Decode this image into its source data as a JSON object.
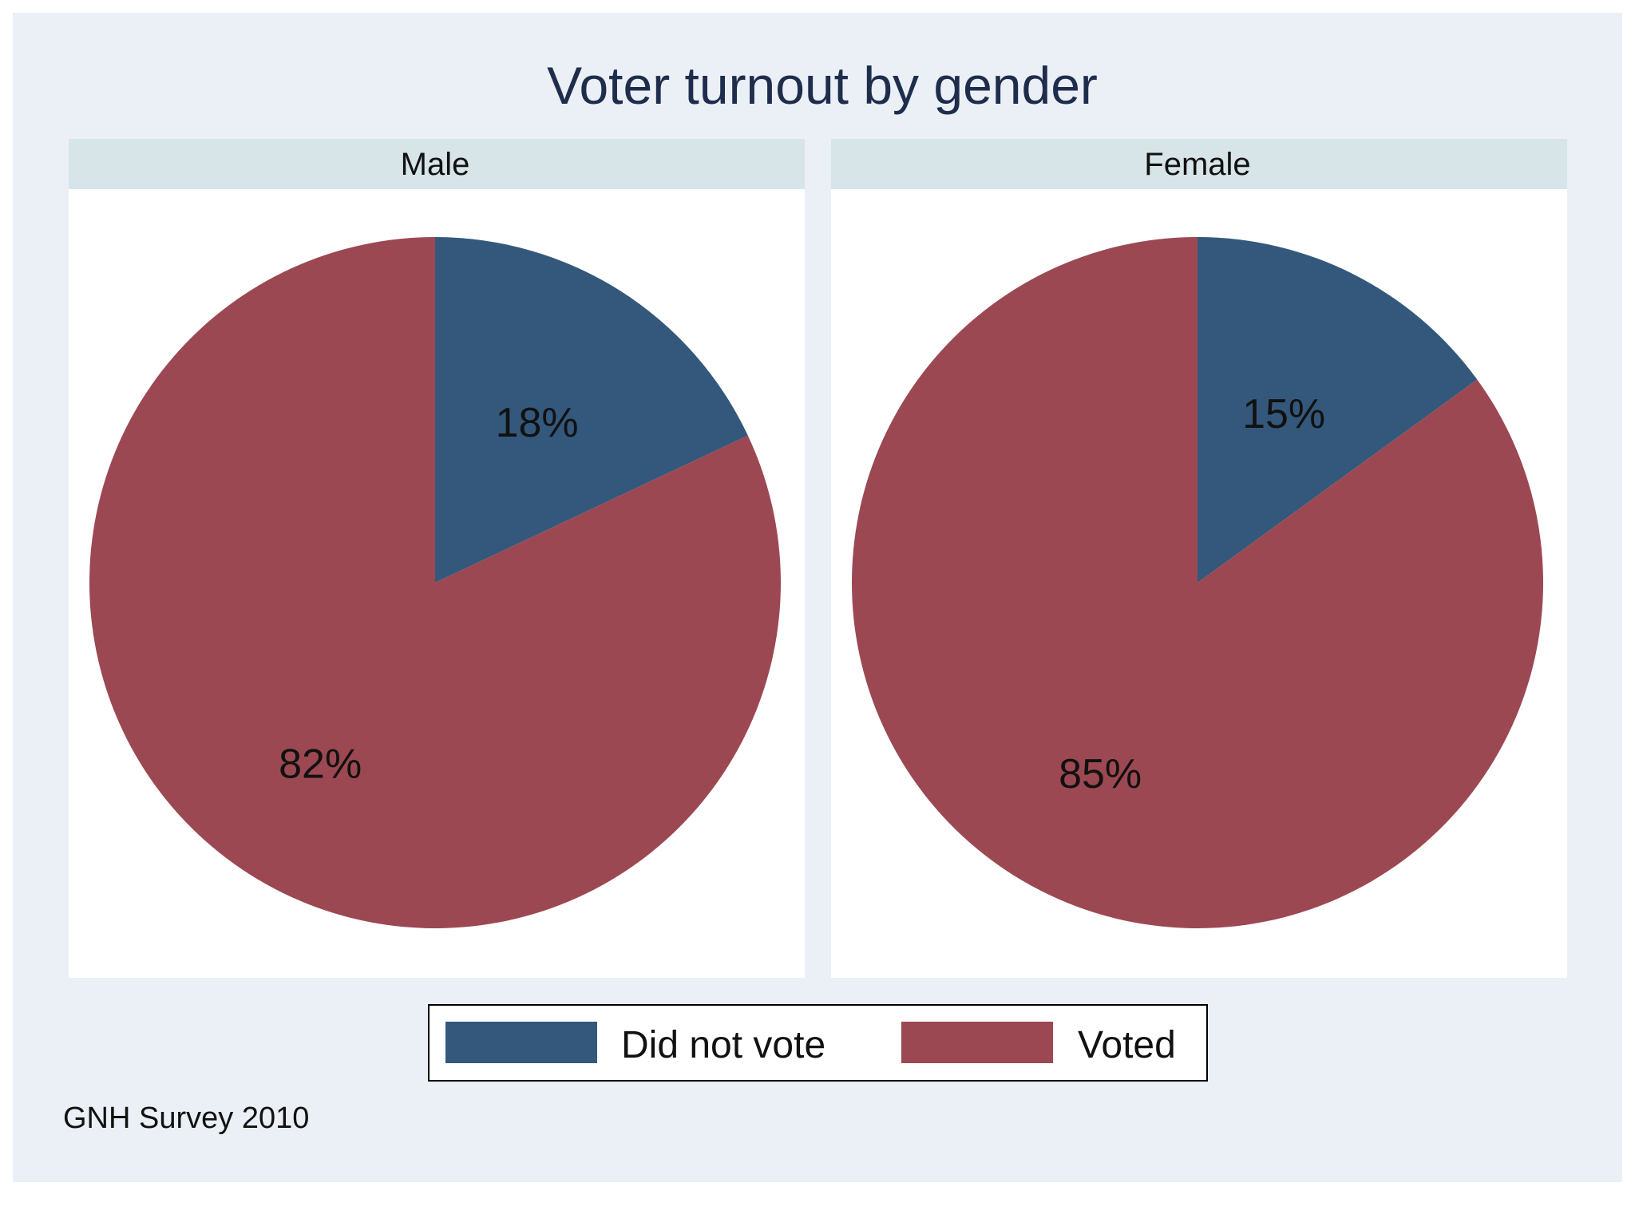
{
  "chart_data": {
    "type": "pie",
    "title": "Voter turnout by gender",
    "note": "GNH Survey 2010",
    "legend": {
      "position": "bottom",
      "entries": [
        "Did not vote",
        "Voted"
      ]
    },
    "colors": {
      "Did not vote": "#33587b",
      "Voted": "#9c4852",
      "background": "#eaf0f5",
      "strip": "#d8e5e8",
      "panel": "#ffffff",
      "title_text": "#1f2d4d"
    },
    "panels": [
      {
        "label": "Male",
        "slices": [
          {
            "label": "Did not vote",
            "value": 18,
            "display": "18%"
          },
          {
            "label": "Voted",
            "value": 82,
            "display": "82%"
          }
        ]
      },
      {
        "label": "Female",
        "slices": [
          {
            "label": "Did not vote",
            "value": 15,
            "display": "15%"
          },
          {
            "label": "Voted",
            "value": 85,
            "display": "85%"
          }
        ]
      }
    ]
  }
}
